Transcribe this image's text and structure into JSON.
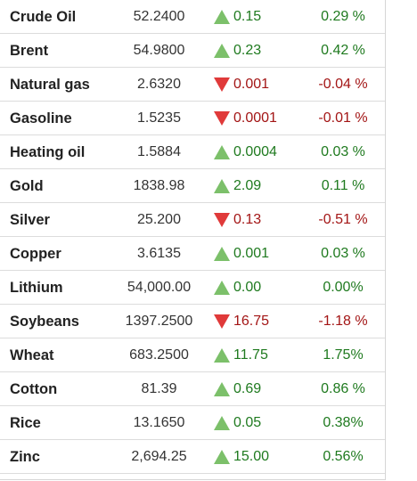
{
  "commodities": [
    {
      "name": "Crude Oil",
      "price": "52.2400",
      "direction": "up",
      "change": "0.15",
      "percent": "0.29 %"
    },
    {
      "name": "Brent",
      "price": "54.9800",
      "direction": "up",
      "change": "0.23",
      "percent": "0.42 %"
    },
    {
      "name": "Natural gas",
      "price": "2.6320",
      "direction": "down",
      "change": "0.001",
      "percent": "-0.04 %"
    },
    {
      "name": "Gasoline",
      "price": "1.5235",
      "direction": "down",
      "change": "0.0001",
      "percent": "-0.01 %"
    },
    {
      "name": "Heating oil",
      "price": "1.5884",
      "direction": "up",
      "change": "0.0004",
      "percent": "0.03 %"
    },
    {
      "name": "Gold",
      "price": "1838.98",
      "direction": "up",
      "change": "2.09",
      "percent": "0.11 %"
    },
    {
      "name": "Silver",
      "price": "25.200",
      "direction": "down",
      "change": "0.13",
      "percent": "-0.51 %"
    },
    {
      "name": "Copper",
      "price": "3.6135",
      "direction": "up",
      "change": "0.001",
      "percent": "0.03 %"
    },
    {
      "name": "Lithium",
      "price": "54,000.00",
      "direction": "up",
      "change": "0.00",
      "percent": "0.00%"
    },
    {
      "name": "Soybeans",
      "price": "1397.2500",
      "direction": "down",
      "change": "16.75",
      "percent": "-1.18 %"
    },
    {
      "name": "Wheat",
      "price": "683.2500",
      "direction": "up",
      "change": "11.75",
      "percent": "1.75%"
    },
    {
      "name": "Cotton",
      "price": "81.39",
      "direction": "up",
      "change": "0.69",
      "percent": "0.86 %"
    },
    {
      "name": "Rice",
      "price": "13.1650",
      "direction": "up",
      "change": "0.05",
      "percent": "0.38%"
    },
    {
      "name": "Zinc",
      "price": "2,694.25",
      "direction": "up",
      "change": "15.00",
      "percent": "0.56%"
    }
  ],
  "colors": {
    "up_arrow": "#7cc06a",
    "down_arrow": "#e03a3a",
    "up_text": "#1f7a1f",
    "down_text": "#a31515"
  },
  "icons": {
    "up": "triangle-up-icon",
    "down": "triangle-down-icon"
  }
}
